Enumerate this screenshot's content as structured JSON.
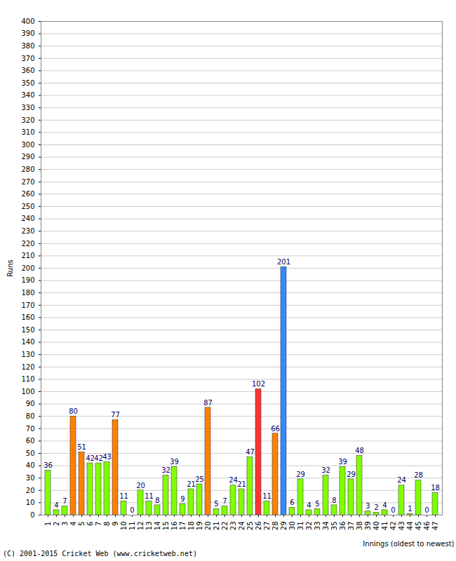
{
  "chart_data": {
    "type": "bar",
    "categories": [
      "1",
      "2",
      "3",
      "4",
      "5",
      "6",
      "7",
      "8",
      "9",
      "10",
      "11",
      "12",
      "13",
      "14",
      "15",
      "16",
      "17",
      "18",
      "19",
      "20",
      "21",
      "22",
      "23",
      "24",
      "25",
      "26",
      "27",
      "28",
      "29",
      "30",
      "31",
      "32",
      "33",
      "34",
      "35",
      "36",
      "37",
      "38",
      "39",
      "40",
      "41",
      "42",
      "43",
      "44",
      "45",
      "46",
      "47"
    ],
    "values": [
      36,
      4,
      7,
      80,
      51,
      42,
      42,
      43,
      77,
      11,
      0,
      20,
      11,
      8,
      32,
      39,
      9,
      21,
      25,
      87,
      5,
      7,
      24,
      21,
      47,
      102,
      11,
      66,
      201,
      6,
      29,
      4,
      5,
      32,
      8,
      39,
      29,
      48,
      3,
      2,
      4,
      0,
      24,
      1,
      28,
      0,
      18
    ],
    "colors": [
      "#80ff00",
      "#80ff00",
      "#80ff00",
      "#ff8000",
      "#ff8000",
      "#80ff00",
      "#80ff00",
      "#80ff00",
      "#ff8000",
      "#80ff00",
      "#80ff00",
      "#80ff00",
      "#80ff00",
      "#80ff00",
      "#80ff00",
      "#80ff00",
      "#80ff00",
      "#80ff00",
      "#80ff00",
      "#ff8000",
      "#80ff00",
      "#80ff00",
      "#80ff00",
      "#80ff00",
      "#80ff00",
      "#ff3333",
      "#80ff00",
      "#ff8000",
      "#3388ff",
      "#80ff00",
      "#80ff00",
      "#80ff00",
      "#80ff00",
      "#80ff00",
      "#80ff00",
      "#80ff00",
      "#80ff00",
      "#80ff00",
      "#80ff00",
      "#80ff00",
      "#80ff00",
      "#80ff00",
      "#80ff00",
      "#80ff00",
      "#80ff00",
      "#80ff00",
      "#80ff00"
    ],
    "x_label": "Innings (oldest to newest)",
    "y_label": "Runs",
    "annotations": [
      "(C) 2001-2015 Cricket Web (www.cricketweb.net)"
    ],
    "ylim": [
      0,
      400
    ],
    "yticks": [
      0,
      10,
      20,
      30,
      40,
      50,
      60,
      70,
      80,
      90,
      100,
      110,
      120,
      130,
      140,
      150,
      160,
      170,
      180,
      190,
      200,
      210,
      220,
      230,
      240,
      250,
      260,
      270,
      280,
      290,
      300,
      310,
      320,
      330,
      340,
      350,
      360,
      370,
      380,
      390,
      400
    ],
    "grid": true,
    "data_labels": true
  }
}
